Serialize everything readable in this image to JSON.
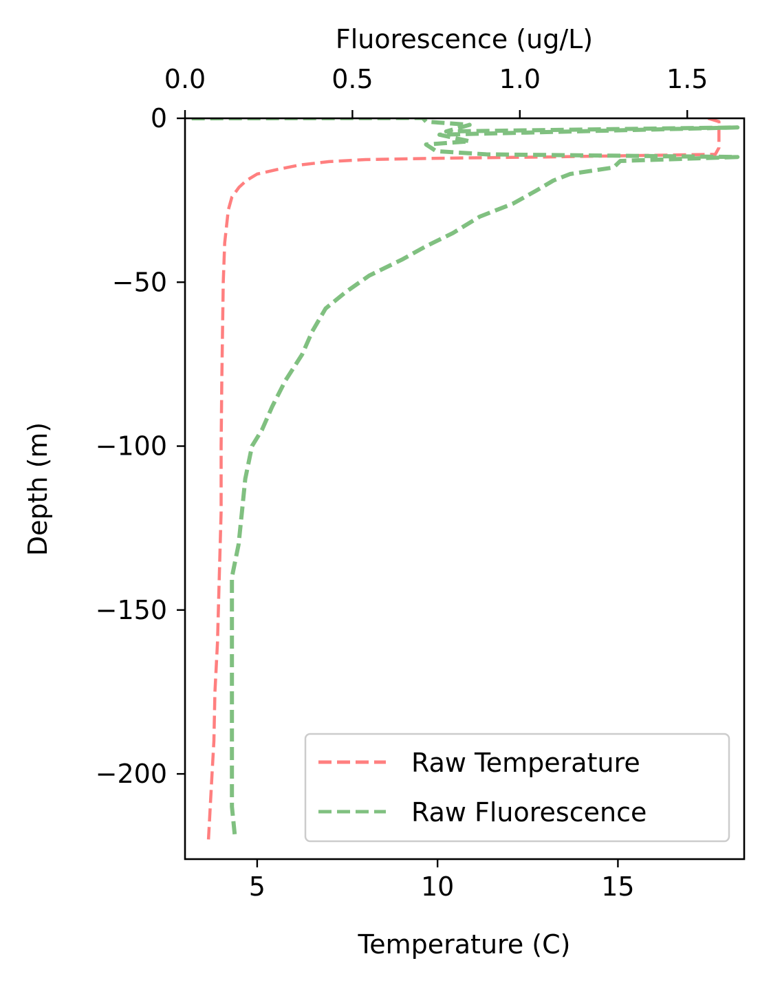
{
  "chart_data": {
    "type": "line",
    "xlabel_bottom": "Temperature (C)",
    "xlabel_top": "Fluorescence (ug/L)",
    "ylabel": "Depth (m)",
    "x_bottom_lim": [
      3.0,
      18.5
    ],
    "x_top_lim": [
      0.0,
      1.67
    ],
    "ylim": [
      -226,
      0
    ],
    "x_bottom_ticks": [
      "5",
      "10",
      "15"
    ],
    "x_bottom_tick_values": [
      5,
      10,
      15
    ],
    "x_top_ticks": [
      "0.0",
      "0.5",
      "1.0",
      "1.5"
    ],
    "x_top_tick_values": [
      0.0,
      0.5,
      1.0,
      1.5
    ],
    "y_ticks": [
      "0",
      "−50",
      "−100",
      "−150",
      "−200"
    ],
    "y_tick_values": [
      0,
      -50,
      -100,
      -150,
      -200
    ],
    "legend_position": "lower-right",
    "grid": false,
    "series": [
      {
        "name": "Raw Temperature",
        "axis": "bottom",
        "color": "#ff7f7f",
        "points": [
          [
            17.5,
            0
          ],
          [
            17.8,
            -1
          ],
          [
            17.8,
            -3
          ],
          [
            17.8,
            -6
          ],
          [
            17.8,
            -9
          ],
          [
            17.7,
            -11
          ],
          [
            13.0,
            -11.8
          ],
          [
            10.0,
            -12.2
          ],
          [
            8.0,
            -12.6
          ],
          [
            7.0,
            -13.2
          ],
          [
            6.2,
            -14.2
          ],
          [
            5.6,
            -15.5
          ],
          [
            5.0,
            -17.0
          ],
          [
            4.7,
            -19.0
          ],
          [
            4.5,
            -21.0
          ],
          [
            4.3,
            -24.0
          ],
          [
            4.2,
            -28.0
          ],
          [
            4.15,
            -33.0
          ],
          [
            4.1,
            -38.0
          ],
          [
            4.06,
            -50.0
          ],
          [
            4.02,
            -80.0
          ],
          [
            4.0,
            -100.0
          ],
          [
            4.0,
            -120.0
          ],
          [
            3.95,
            -140.0
          ],
          [
            3.9,
            -160.0
          ],
          [
            3.83,
            -175.0
          ],
          [
            3.8,
            -190.0
          ],
          [
            3.75,
            -200.0
          ],
          [
            3.7,
            -210.0
          ],
          [
            3.65,
            -220.0
          ]
        ]
      },
      {
        "name": "Raw Fluorescence",
        "axis": "top",
        "color": "#80c080",
        "points": [
          [
            0.02,
            0
          ],
          [
            0.71,
            0.1
          ],
          [
            0.72,
            -1
          ],
          [
            0.85,
            -2
          ],
          [
            0.78,
            -4
          ],
          [
            1.65,
            -2.8
          ],
          [
            0.76,
            -5
          ],
          [
            0.85,
            -7
          ],
          [
            0.72,
            -8
          ],
          [
            0.75,
            -10
          ],
          [
            0.9,
            -11
          ],
          [
            1.65,
            -11.8
          ],
          [
            1.3,
            -13
          ],
          [
            1.28,
            -15
          ],
          [
            1.15,
            -17
          ],
          [
            1.1,
            -19
          ],
          [
            1.05,
            -22
          ],
          [
            0.98,
            -26
          ],
          [
            0.88,
            -30
          ],
          [
            0.8,
            -35
          ],
          [
            0.72,
            -39
          ],
          [
            0.65,
            -43
          ],
          [
            0.55,
            -48
          ],
          [
            0.48,
            -53
          ],
          [
            0.42,
            -58
          ],
          [
            0.38,
            -65
          ],
          [
            0.35,
            -72
          ],
          [
            0.3,
            -80
          ],
          [
            0.26,
            -88
          ],
          [
            0.23,
            -95
          ],
          [
            0.2,
            -100
          ],
          [
            0.18,
            -110
          ],
          [
            0.17,
            -120
          ],
          [
            0.16,
            -130
          ],
          [
            0.14,
            -140
          ],
          [
            0.14,
            -150
          ],
          [
            0.14,
            -160
          ],
          [
            0.14,
            -170
          ],
          [
            0.14,
            -180
          ],
          [
            0.14,
            -190
          ],
          [
            0.14,
            -200
          ],
          [
            0.14,
            -210
          ],
          [
            0.15,
            -220
          ]
        ]
      }
    ]
  }
}
